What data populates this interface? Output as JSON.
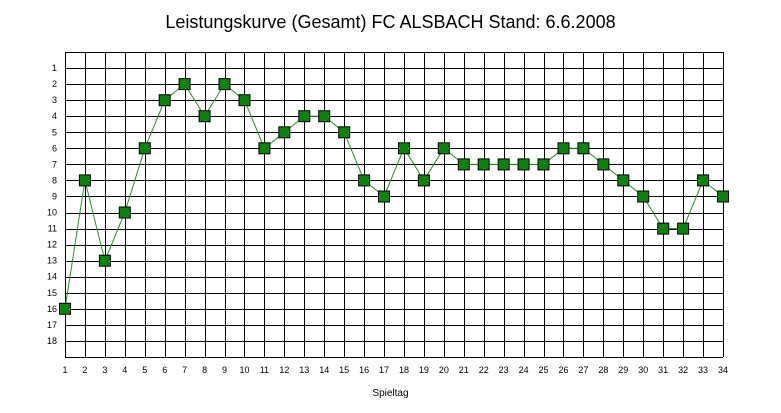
{
  "chart_data": {
    "type": "line",
    "title": "Leistungskurve (Gesamt) FC ALSBACH Stand: 6.6.2008",
    "xlabel": "Spieltag",
    "ylabel": "",
    "x": [
      1,
      2,
      3,
      4,
      5,
      6,
      7,
      8,
      9,
      10,
      11,
      12,
      13,
      14,
      15,
      16,
      17,
      18,
      19,
      20,
      21,
      22,
      23,
      24,
      25,
      26,
      27,
      28,
      29,
      30,
      31,
      32,
      33,
      34
    ],
    "values": [
      16,
      8,
      13,
      10,
      6,
      3,
      2,
      4,
      2,
      3,
      6,
      5,
      4,
      4,
      5,
      8,
      9,
      6,
      8,
      6,
      7,
      7,
      7,
      7,
      7,
      6,
      6,
      7,
      8,
      9,
      11,
      11,
      8,
      9
    ],
    "xlim": [
      1,
      34
    ],
    "ylim": [
      19,
      0
    ],
    "y_ticks": [
      1,
      2,
      3,
      4,
      5,
      6,
      7,
      8,
      9,
      10,
      11,
      12,
      13,
      14,
      15,
      16,
      17,
      18
    ],
    "y_inverted": true,
    "grid": true,
    "colors": {
      "marker_fill": "#138013",
      "marker_edge": "#000000",
      "line": "#2e8b2e",
      "grid": "#000000"
    }
  }
}
